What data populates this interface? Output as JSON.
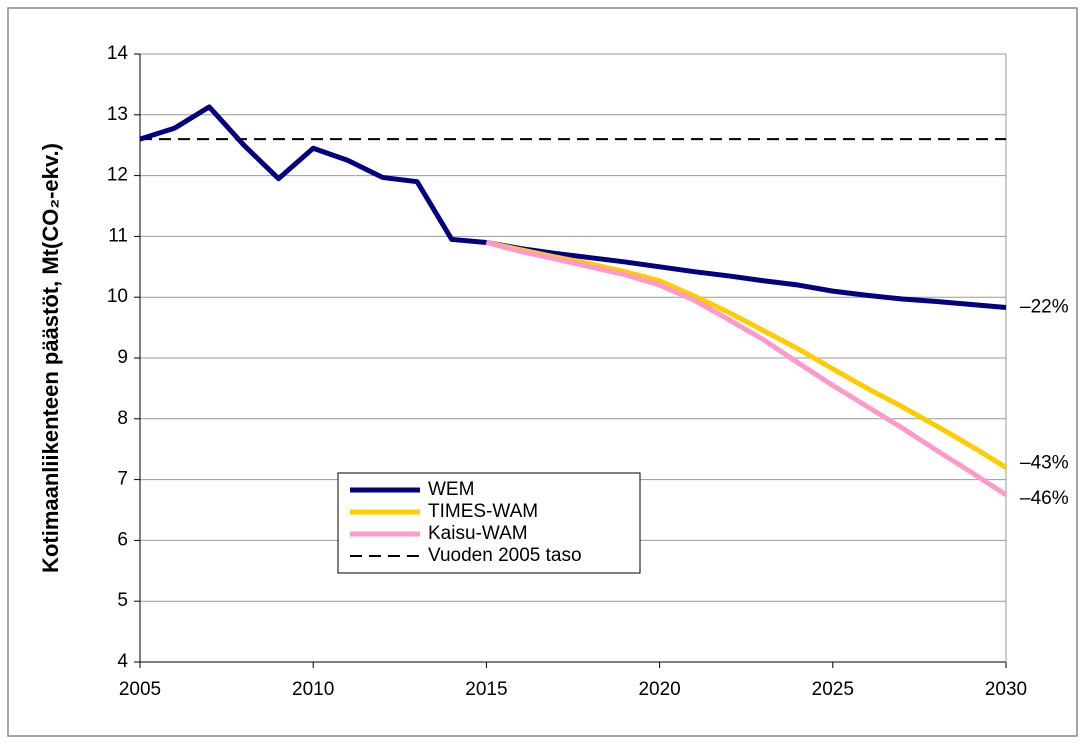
{
  "chart_data": {
    "type": "line",
    "y_label": "Kotimaanliikenteen päästöt, Mt(CO₂-ekv.)",
    "x": [
      2005,
      2006,
      2007,
      2008,
      2009,
      2010,
      2011,
      2012,
      2013,
      2014,
      2015,
      2016,
      2017,
      2018,
      2019,
      2020,
      2021,
      2022,
      2023,
      2024,
      2025,
      2026,
      2027,
      2028,
      2029,
      2030
    ],
    "series": [
      {
        "name": "WEM",
        "color": "#000080",
        "end_label": "–22%",
        "values": [
          12.6,
          12.78,
          13.13,
          12.5,
          11.95,
          12.45,
          12.25,
          11.97,
          11.9,
          10.95,
          10.9,
          10.8,
          10.72,
          10.65,
          10.58,
          10.5,
          10.42,
          10.35,
          10.27,
          10.2,
          10.1,
          10.03,
          9.97,
          9.93,
          9.88,
          9.83
        ]
      },
      {
        "name": "TIMES-WAM",
        "color": "#ffcc00",
        "end_label": "–43%",
        "values": [
          null,
          null,
          null,
          null,
          null,
          null,
          null,
          null,
          null,
          null,
          10.9,
          10.78,
          10.66,
          10.55,
          10.42,
          10.27,
          10.02,
          9.75,
          9.45,
          9.15,
          8.82,
          8.5,
          8.2,
          7.88,
          7.55,
          7.2
        ]
      },
      {
        "name": "Kaisu-WAM",
        "color": "#ff99cc",
        "end_label": "–46%",
        "values": [
          null,
          null,
          null,
          null,
          null,
          null,
          null,
          null,
          null,
          null,
          10.9,
          10.75,
          10.63,
          10.5,
          10.37,
          10.2,
          9.95,
          9.63,
          9.3,
          8.92,
          8.55,
          8.2,
          7.85,
          7.48,
          7.12,
          6.75
        ]
      }
    ],
    "reference": {
      "name": "Vuoden 2005 taso",
      "value": 12.6,
      "color": "#000000"
    },
    "xlim": [
      2005,
      2030
    ],
    "xticks": [
      2005,
      2010,
      2015,
      2020,
      2025,
      2030
    ],
    "ylim": [
      4,
      14
    ],
    "yticks": [
      4,
      5,
      6,
      7,
      8,
      9,
      10,
      11,
      12,
      13,
      14
    ],
    "grid": true
  }
}
